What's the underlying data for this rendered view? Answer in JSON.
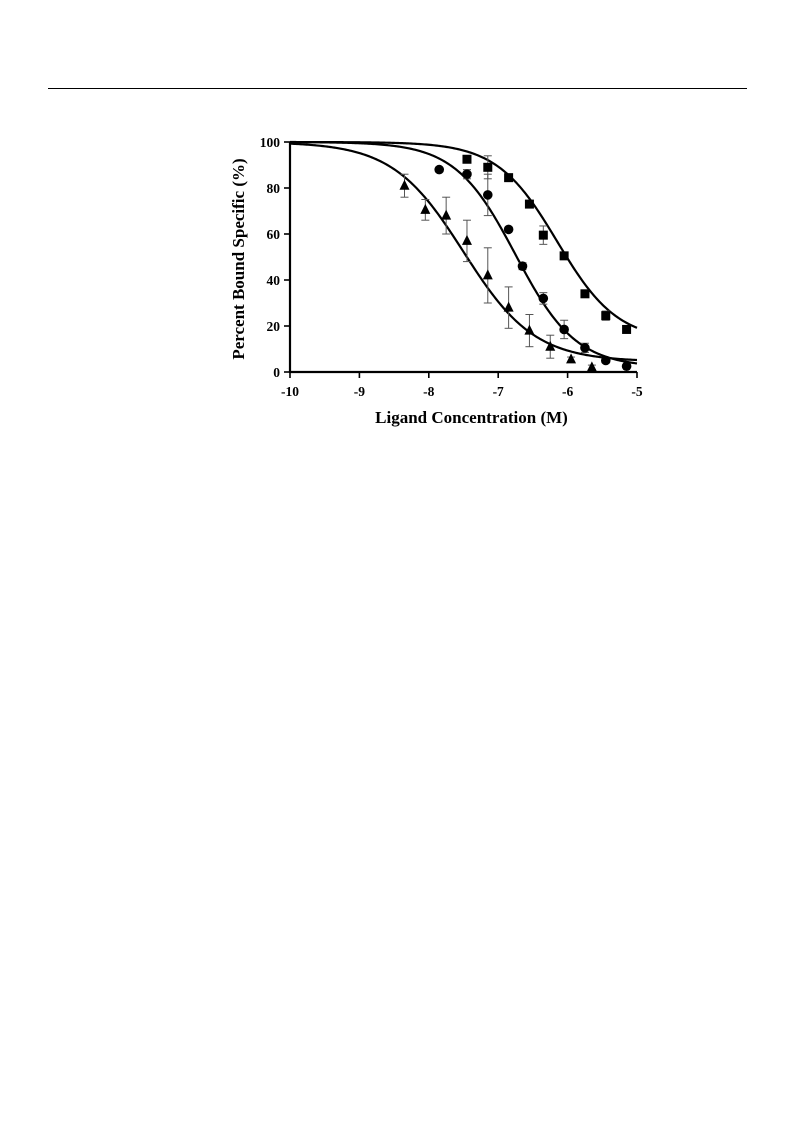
{
  "chart_data": {
    "type": "scatter",
    "title": "",
    "xlabel": "Ligand Concentration (M)",
    "ylabel": "Percent Bound Specific (%)",
    "xlim": [
      -10,
      -5
    ],
    "ylim": [
      0,
      100
    ],
    "xticks": [
      -10,
      -9,
      -8,
      -7,
      -6,
      -5
    ],
    "yticks": [
      0,
      20,
      40,
      60,
      80,
      100
    ],
    "xtick_labels": [
      "-10",
      "-9",
      "-8",
      "-7",
      "-6",
      "-5"
    ],
    "ytick_labels": [
      "0",
      "20",
      "40",
      "60",
      "80",
      "100"
    ],
    "grid": false,
    "legend": "none",
    "series": [
      {
        "marker": "square",
        "fit": {
          "model": "sigmoid",
          "top": 100,
          "bottom": 13.5,
          "log_ic50": -6.15,
          "hill": -1.0
        },
        "points": [
          {
            "x": -7.45,
            "y": 92.5,
            "err": 1.5
          },
          {
            "x": -7.15,
            "y": 89,
            "err": 5
          },
          {
            "x": -6.85,
            "y": 84.5,
            "err": 1.5
          },
          {
            "x": -6.55,
            "y": 73,
            "err": 1.5
          },
          {
            "x": -6.35,
            "y": 59.5,
            "err": 4
          },
          {
            "x": -6.05,
            "y": 50.5,
            "err": 1.5
          },
          {
            "x": -5.75,
            "y": 34,
            "err": 1.5
          },
          {
            "x": -5.45,
            "y": 24.5,
            "err": 2
          },
          {
            "x": -5.15,
            "y": 18.5,
            "err": 1
          }
        ]
      },
      {
        "marker": "circle",
        "fit": {
          "model": "sigmoid",
          "top": 100,
          "bottom": 2,
          "log_ic50": -6.75,
          "hill": -1.0
        },
        "points": [
          {
            "x": -7.85,
            "y": 88,
            "err": 1
          },
          {
            "x": -7.45,
            "y": 86,
            "err": 2
          },
          {
            "x": -7.15,
            "y": 77,
            "err": 9
          },
          {
            "x": -6.85,
            "y": 62,
            "err": 1
          },
          {
            "x": -6.65,
            "y": 46,
            "err": 1.5
          },
          {
            "x": -6.35,
            "y": 32,
            "err": 2.5
          },
          {
            "x": -6.05,
            "y": 18.5,
            "err": 4
          },
          {
            "x": -5.75,
            "y": 10.5,
            "err": 2
          },
          {
            "x": -5.45,
            "y": 5,
            "err": 1
          },
          {
            "x": -5.15,
            "y": 2.5,
            "err": 0.5
          }
        ]
      },
      {
        "marker": "triangle",
        "fit": {
          "model": "sigmoid",
          "top": 100,
          "bottom": 4.5,
          "log_ic50": -7.5,
          "hill": -0.85
        },
        "points": [
          {
            "x": -8.35,
            "y": 81,
            "err": 5
          },
          {
            "x": -8.05,
            "y": 70.5,
            "err": 4.5
          },
          {
            "x": -7.75,
            "y": 68,
            "err": 8
          },
          {
            "x": -7.45,
            "y": 57,
            "err": 9
          },
          {
            "x": -7.15,
            "y": 42,
            "err": 12
          },
          {
            "x": -6.85,
            "y": 28,
            "err": 9
          },
          {
            "x": -6.55,
            "y": 18,
            "err": 7
          },
          {
            "x": -6.25,
            "y": 11,
            "err": 5
          },
          {
            "x": -5.95,
            "y": 5.5,
            "err": 1
          },
          {
            "x": -5.65,
            "y": 2,
            "err": 1
          }
        ]
      }
    ]
  }
}
